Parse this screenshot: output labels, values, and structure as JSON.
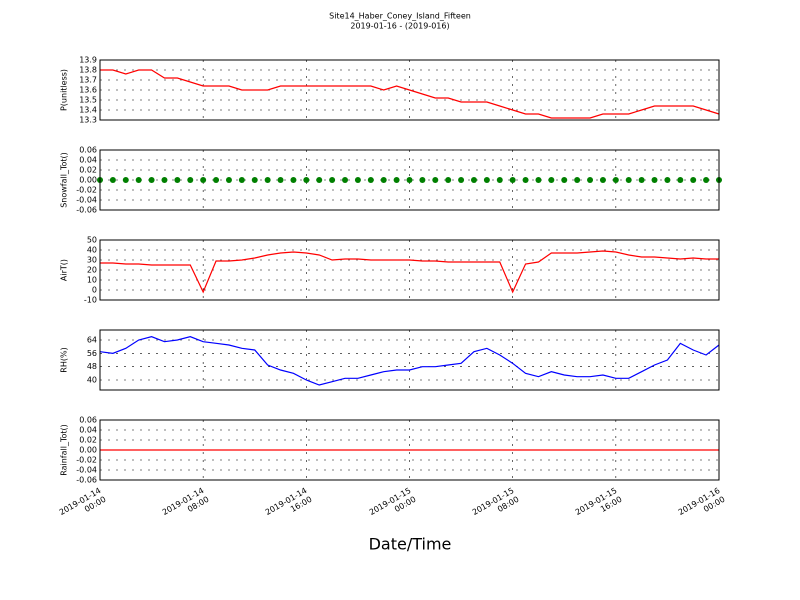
{
  "title": "Site14_Haber_Coney_Island_Fifteen",
  "subtitle": "2019-01-16 - (2019-016)",
  "xlabel": "Date/Time",
  "chart_data": [
    {
      "type": "line",
      "ylabel": "P(unitless)",
      "color": "#ff0000",
      "grid": true,
      "x": [
        "2019-01-14 00:00",
        "2019-01-14 01:00",
        "2019-01-14 02:00",
        "2019-01-14 03:00",
        "2019-01-14 04:00",
        "2019-01-14 05:00",
        "2019-01-14 06:00",
        "2019-01-14 07:00",
        "2019-01-14 08:00",
        "2019-01-14 09:00",
        "2019-01-14 10:00",
        "2019-01-14 11:00",
        "2019-01-14 12:00",
        "2019-01-14 13:00",
        "2019-01-14 14:00",
        "2019-01-14 15:00",
        "2019-01-14 16:00",
        "2019-01-14 17:00",
        "2019-01-14 18:00",
        "2019-01-14 19:00",
        "2019-01-14 20:00",
        "2019-01-14 21:00",
        "2019-01-14 22:00",
        "2019-01-14 23:00",
        "2019-01-15 00:00",
        "2019-01-15 01:00",
        "2019-01-15 02:00",
        "2019-01-15 03:00",
        "2019-01-15 04:00",
        "2019-01-15 05:00",
        "2019-01-15 06:00",
        "2019-01-15 07:00",
        "2019-01-15 08:00",
        "2019-01-15 09:00",
        "2019-01-15 10:00",
        "2019-01-15 11:00",
        "2019-01-15 12:00",
        "2019-01-15 13:00",
        "2019-01-15 14:00",
        "2019-01-15 15:00",
        "2019-01-15 16:00",
        "2019-01-15 17:00",
        "2019-01-15 18:00",
        "2019-01-15 19:00",
        "2019-01-15 20:00",
        "2019-01-15 21:00",
        "2019-01-15 22:00",
        "2019-01-15 23:00",
        "2019-01-16 00:00"
      ],
      "values": [
        13.8,
        13.8,
        13.76,
        13.8,
        13.8,
        13.72,
        13.72,
        13.68,
        13.64,
        13.64,
        13.64,
        13.6,
        13.6,
        13.6,
        13.64,
        13.64,
        13.64,
        13.64,
        13.64,
        13.64,
        13.64,
        13.64,
        13.6,
        13.64,
        13.6,
        13.56,
        13.52,
        13.52,
        13.48,
        13.48,
        13.48,
        13.44,
        13.4,
        13.36,
        13.36,
        13.32,
        13.32,
        13.32,
        13.32,
        13.36,
        13.36,
        13.36,
        13.4,
        13.44,
        13.44,
        13.44,
        13.44,
        13.4,
        13.36
      ],
      "xlim": [
        "2019-01-14 00:00",
        "2019-01-16 00:00"
      ],
      "xticks": [
        "2019-01-14 00:00",
        "2019-01-14 08:00",
        "2019-01-14 16:00",
        "2019-01-15 00:00",
        "2019-01-15 08:00",
        "2019-01-15 16:00",
        "2019-01-16 00:00"
      ],
      "ylim": [
        13.3,
        13.9
      ],
      "yticks": [
        13.3,
        13.4,
        13.5,
        13.6,
        13.7,
        13.8,
        13.9
      ]
    },
    {
      "type": "scatter",
      "ylabel": "Snowfall_Tot()",
      "color": "#007f00",
      "grid": true,
      "x": [
        "2019-01-14 00:00",
        "2019-01-14 01:00",
        "2019-01-14 02:00",
        "2019-01-14 03:00",
        "2019-01-14 04:00",
        "2019-01-14 05:00",
        "2019-01-14 06:00",
        "2019-01-14 07:00",
        "2019-01-14 08:00",
        "2019-01-14 09:00",
        "2019-01-14 10:00",
        "2019-01-14 11:00",
        "2019-01-14 12:00",
        "2019-01-14 13:00",
        "2019-01-14 14:00",
        "2019-01-14 15:00",
        "2019-01-14 16:00",
        "2019-01-14 17:00",
        "2019-01-14 18:00",
        "2019-01-14 19:00",
        "2019-01-14 20:00",
        "2019-01-14 21:00",
        "2019-01-14 22:00",
        "2019-01-14 23:00",
        "2019-01-15 00:00",
        "2019-01-15 01:00",
        "2019-01-15 02:00",
        "2019-01-15 03:00",
        "2019-01-15 04:00",
        "2019-01-15 05:00",
        "2019-01-15 06:00",
        "2019-01-15 07:00",
        "2019-01-15 08:00",
        "2019-01-15 09:00",
        "2019-01-15 10:00",
        "2019-01-15 11:00",
        "2019-01-15 12:00",
        "2019-01-15 13:00",
        "2019-01-15 14:00",
        "2019-01-15 15:00",
        "2019-01-15 16:00",
        "2019-01-15 17:00",
        "2019-01-15 18:00",
        "2019-01-15 19:00",
        "2019-01-15 20:00",
        "2019-01-15 21:00",
        "2019-01-15 22:00",
        "2019-01-15 23:00",
        "2019-01-16 00:00"
      ],
      "values": [
        0,
        0,
        0,
        0,
        0,
        0,
        0,
        0,
        0,
        0,
        0,
        0,
        0,
        0,
        0,
        0,
        0,
        0,
        0,
        0,
        0,
        0,
        0,
        0,
        0,
        0,
        0,
        0,
        0,
        0,
        0,
        0,
        0,
        0,
        0,
        0,
        0,
        0,
        0,
        0,
        0,
        0,
        0,
        0,
        0,
        0,
        0,
        0,
        0
      ],
      "xlim": [
        "2019-01-14 00:00",
        "2019-01-16 00:00"
      ],
      "xticks": [
        "2019-01-14 00:00",
        "2019-01-14 08:00",
        "2019-01-14 16:00",
        "2019-01-15 00:00",
        "2019-01-15 08:00",
        "2019-01-15 16:00",
        "2019-01-16 00:00"
      ],
      "ylim": [
        -0.06,
        0.06
      ],
      "yticks": [
        -0.06,
        -0.04,
        -0.02,
        {
          "value": 0,
          "label": "0.00"
        },
        0.02,
        0.04,
        0.06
      ]
    },
    {
      "type": "line",
      "ylabel": "AirT()",
      "color": "#ff0000",
      "grid": true,
      "x": [
        "2019-01-14 00:00",
        "2019-01-14 01:00",
        "2019-01-14 02:00",
        "2019-01-14 03:00",
        "2019-01-14 04:00",
        "2019-01-14 05:00",
        "2019-01-14 06:00",
        "2019-01-14 07:00",
        "2019-01-14 08:00",
        "2019-01-14 09:00",
        "2019-01-14 10:00",
        "2019-01-14 11:00",
        "2019-01-14 12:00",
        "2019-01-14 13:00",
        "2019-01-14 14:00",
        "2019-01-14 15:00",
        "2019-01-14 16:00",
        "2019-01-14 17:00",
        "2019-01-14 18:00",
        "2019-01-14 19:00",
        "2019-01-14 20:00",
        "2019-01-14 21:00",
        "2019-01-14 22:00",
        "2019-01-14 23:00",
        "2019-01-15 00:00",
        "2019-01-15 01:00",
        "2019-01-15 02:00",
        "2019-01-15 03:00",
        "2019-01-15 04:00",
        "2019-01-15 05:00",
        "2019-01-15 06:00",
        "2019-01-15 07:00",
        "2019-01-15 08:00",
        "2019-01-15 09:00",
        "2019-01-15 10:00",
        "2019-01-15 11:00",
        "2019-01-15 12:00",
        "2019-01-15 13:00",
        "2019-01-15 14:00",
        "2019-01-15 15:00",
        "2019-01-15 16:00",
        "2019-01-15 17:00",
        "2019-01-15 18:00",
        "2019-01-15 19:00",
        "2019-01-15 20:00",
        "2019-01-15 21:00",
        "2019-01-15 22:00",
        "2019-01-15 23:00",
        "2019-01-16 00:00"
      ],
      "values": [
        27,
        27,
        26,
        26,
        25,
        25,
        25,
        25,
        -2,
        29,
        29,
        30,
        32,
        35,
        37,
        38,
        37,
        35,
        30,
        31,
        31,
        30,
        30,
        30,
        30,
        29,
        29,
        28,
        28,
        28,
        28,
        28,
        -2,
        26,
        28,
        37,
        37,
        37,
        38,
        39,
        38,
        35,
        33,
        33,
        32,
        31,
        32,
        31,
        31
      ],
      "xlim": [
        "2019-01-14 00:00",
        "2019-01-16 00:00"
      ],
      "xticks": [
        "2019-01-14 00:00",
        "2019-01-14 08:00",
        "2019-01-14 16:00",
        "2019-01-15 00:00",
        "2019-01-15 08:00",
        "2019-01-15 16:00",
        "2019-01-16 00:00"
      ],
      "ylim": [
        -10,
        50
      ],
      "yticks": [
        -10,
        0,
        10,
        20,
        30,
        40,
        50
      ]
    },
    {
      "type": "line",
      "ylabel": "RH(%)",
      "color": "#0000ff",
      "grid": true,
      "x": [
        "2019-01-14 00:00",
        "2019-01-14 01:00",
        "2019-01-14 02:00",
        "2019-01-14 03:00",
        "2019-01-14 04:00",
        "2019-01-14 05:00",
        "2019-01-14 06:00",
        "2019-01-14 07:00",
        "2019-01-14 08:00",
        "2019-01-14 09:00",
        "2019-01-14 10:00",
        "2019-01-14 11:00",
        "2019-01-14 12:00",
        "2019-01-14 13:00",
        "2019-01-14 14:00",
        "2019-01-14 15:00",
        "2019-01-14 16:00",
        "2019-01-14 17:00",
        "2019-01-14 18:00",
        "2019-01-14 19:00",
        "2019-01-14 20:00",
        "2019-01-14 21:00",
        "2019-01-14 22:00",
        "2019-01-14 23:00",
        "2019-01-15 00:00",
        "2019-01-15 01:00",
        "2019-01-15 02:00",
        "2019-01-15 03:00",
        "2019-01-15 04:00",
        "2019-01-15 05:00",
        "2019-01-15 06:00",
        "2019-01-15 07:00",
        "2019-01-15 08:00",
        "2019-01-15 09:00",
        "2019-01-15 10:00",
        "2019-01-15 11:00",
        "2019-01-15 12:00",
        "2019-01-15 13:00",
        "2019-01-15 14:00",
        "2019-01-15 15:00",
        "2019-01-15 16:00",
        "2019-01-15 17:00",
        "2019-01-15 18:00",
        "2019-01-15 19:00",
        "2019-01-15 20:00",
        "2019-01-15 21:00",
        "2019-01-15 22:00",
        "2019-01-15 23:00",
        "2019-01-16 00:00"
      ],
      "values": [
        57,
        56,
        59,
        64,
        66,
        63,
        64,
        66,
        63,
        62,
        61,
        59,
        58,
        49,
        46,
        44,
        40,
        37,
        39,
        41,
        41,
        43,
        45,
        46,
        46,
        48,
        48,
        49,
        50,
        57,
        59,
        55,
        50,
        44,
        42,
        45,
        43,
        42,
        42,
        43,
        41,
        41,
        45,
        49,
        52,
        62,
        58,
        55,
        61
      ],
      "xlim": [
        "2019-01-14 00:00",
        "2019-01-16 00:00"
      ],
      "xticks": [
        "2019-01-14 00:00",
        "2019-01-14 08:00",
        "2019-01-14 16:00",
        "2019-01-15 00:00",
        "2019-01-15 08:00",
        "2019-01-15 16:00",
        "2019-01-16 00:00"
      ],
      "ylim": [
        34,
        70
      ],
      "yticks": [
        40,
        48,
        56,
        64
      ]
    },
    {
      "type": "line",
      "ylabel": "Rainfall_Tot()",
      "color": "#ff0000",
      "grid": true,
      "x": [
        "2019-01-14 00:00",
        "2019-01-14 01:00",
        "2019-01-14 02:00",
        "2019-01-14 03:00",
        "2019-01-14 04:00",
        "2019-01-14 05:00",
        "2019-01-14 06:00",
        "2019-01-14 07:00",
        "2019-01-14 08:00",
        "2019-01-14 09:00",
        "2019-01-14 10:00",
        "2019-01-14 11:00",
        "2019-01-14 12:00",
        "2019-01-14 13:00",
        "2019-01-14 14:00",
        "2019-01-14 15:00",
        "2019-01-14 16:00",
        "2019-01-14 17:00",
        "2019-01-14 18:00",
        "2019-01-14 19:00",
        "2019-01-14 20:00",
        "2019-01-14 21:00",
        "2019-01-14 22:00",
        "2019-01-14 23:00",
        "2019-01-15 00:00",
        "2019-01-15 01:00",
        "2019-01-15 02:00",
        "2019-01-15 03:00",
        "2019-01-15 04:00",
        "2019-01-15 05:00",
        "2019-01-15 06:00",
        "2019-01-15 07:00",
        "2019-01-15 08:00",
        "2019-01-15 09:00",
        "2019-01-15 10:00",
        "2019-01-15 11:00",
        "2019-01-15 12:00",
        "2019-01-15 13:00",
        "2019-01-15 14:00",
        "2019-01-15 15:00",
        "2019-01-15 16:00",
        "2019-01-15 17:00",
        "2019-01-15 18:00",
        "2019-01-15 19:00",
        "2019-01-15 20:00",
        "2019-01-15 21:00",
        "2019-01-15 22:00",
        "2019-01-15 23:00",
        "2019-01-16 00:00"
      ],
      "values": [
        0,
        0,
        0,
        0,
        0,
        0,
        0,
        0,
        0,
        0,
        0,
        0,
        0,
        0,
        0,
        0,
        0,
        0,
        0,
        0,
        0,
        0,
        0,
        0,
        0,
        0,
        0,
        0,
        0,
        0,
        0,
        0,
        0,
        0,
        0,
        0,
        0,
        0,
        0,
        0,
        0,
        0,
        0,
        0,
        0,
        0,
        0,
        0,
        0
      ],
      "xlim": [
        "2019-01-14 00:00",
        "2019-01-16 00:00"
      ],
      "xticks": [
        "2019-01-14 00:00",
        "2019-01-14 08:00",
        "2019-01-14 16:00",
        "2019-01-15 00:00",
        "2019-01-15 08:00",
        "2019-01-15 16:00",
        "2019-01-16 00:00"
      ],
      "ylim": [
        -0.06,
        0.06
      ],
      "yticks": [
        -0.06,
        -0.04,
        -0.02,
        {
          "value": 0,
          "label": "0.00"
        },
        0.02,
        0.04,
        0.06
      ],
      "show_xtick_labels": true
    }
  ]
}
